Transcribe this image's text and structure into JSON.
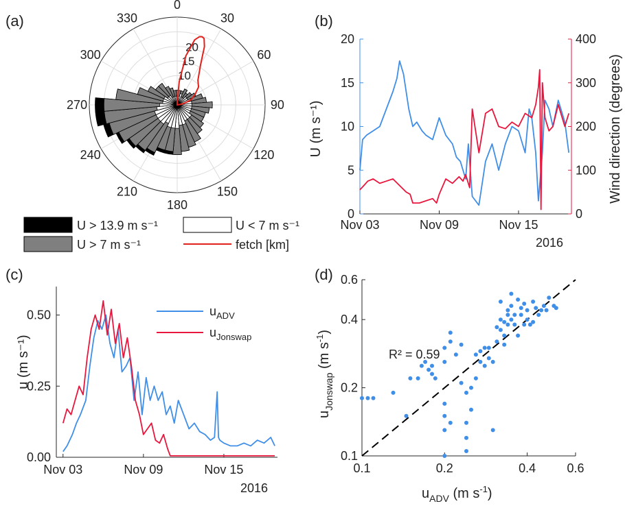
{
  "colors": {
    "blue": "#3f8ee8",
    "red": "#e8163c",
    "fetch_red": "#e0201a",
    "black": "#000000",
    "gray": "#7f7f7f",
    "white": "#ffffff",
    "axis": "#262626"
  },
  "panel_labels": [
    "(a)",
    "(b)",
    "(c)",
    "(d)"
  ],
  "chart_data": [
    {
      "panel": "(a)",
      "type": "polar-bar",
      "angle_ticks": [
        "0",
        "30",
        "60",
        "90",
        "120",
        "150",
        "180",
        "210",
        "240",
        "270",
        "300",
        "330"
      ],
      "radial_ticks": [
        "10",
        "15",
        "20"
      ],
      "legend": {
        "black": "U > 13.9 m s⁻¹",
        "white": "U < 7 m s⁻¹",
        "gray": "U > 7 m s⁻¹",
        "fetch": "fetch [km]"
      },
      "bins_deg": [
        0,
        10,
        20,
        30,
        40,
        50,
        60,
        70,
        80,
        90,
        100,
        110,
        120,
        130,
        140,
        150,
        160,
        170,
        180,
        190,
        200,
        210,
        220,
        230,
        240,
        250,
        260,
        270,
        280,
        290,
        300,
        310,
        320,
        330,
        340,
        350
      ],
      "r_low": [
        3,
        3,
        4,
        3,
        3,
        4,
        4,
        5,
        5,
        5,
        5,
        5,
        5,
        6,
        6,
        6,
        7,
        7,
        8,
        8,
        8,
        7,
        8,
        8,
        8,
        8,
        7,
        6,
        5,
        5,
        5,
        4,
        4,
        3,
        3,
        3
      ],
      "r_mid": [
        5,
        5,
        5,
        6,
        5,
        6,
        7,
        9,
        10,
        12,
        11,
        10,
        10,
        11,
        12,
        14,
        15,
        16,
        17,
        16,
        16,
        18,
        19,
        20,
        22,
        24,
        25,
        25,
        21,
        14,
        11,
        9,
        9,
        7,
        6,
        5
      ],
      "r_high": [
        0,
        0,
        0,
        0,
        0,
        0,
        0,
        0,
        0,
        0,
        0,
        0,
        0,
        0,
        0,
        0,
        0,
        0,
        0,
        1,
        1,
        1,
        1,
        1,
        1,
        2,
        3,
        3,
        0,
        0,
        0,
        0,
        0,
        0,
        0,
        0
      ],
      "fetch_km": {
        "angle": [
          0,
          5,
          10,
          15,
          18,
          20,
          22,
          25,
          30,
          40,
          50,
          60,
          70,
          75,
          80,
          90
        ],
        "r": [
          1,
          8,
          17,
          23,
          24.5,
          24.8,
          24.5,
          22,
          16,
          11,
          9.5,
          7,
          5,
          3,
          1.5,
          0
        ]
      }
    },
    {
      "panel": "(b)",
      "type": "line",
      "x_ticks": [
        "Nov 03",
        "Nov 09",
        "Nov 15"
      ],
      "x_year": "2016",
      "ylabel_left": "U (m s⁻¹)",
      "ylabel_right": "Wind direction (degrees)",
      "ylim_left": [
        0,
        20
      ],
      "ylim_right": [
        0,
        400
      ],
      "yticks_left": [
        "0",
        "5",
        "10",
        "15",
        "20"
      ],
      "yticks_right": [
        "0",
        "100",
        "200",
        "300",
        "400"
      ],
      "xlim_days": [
        3,
        19
      ],
      "series": [
        {
          "axis": "left",
          "color": "blue",
          "x": [
            3.0,
            3.2,
            3.5,
            4.0,
            4.5,
            5.0,
            5.5,
            5.8,
            6.0,
            6.3,
            6.7,
            7.0,
            7.3,
            7.7,
            8.0,
            8.5,
            9.0,
            9.5,
            10.0,
            10.3,
            10.6,
            11.0,
            11.2,
            11.5,
            12.0,
            12.5,
            13.0,
            13.5,
            14.0,
            14.5,
            15.0,
            15.5,
            15.8,
            16.0,
            16.3,
            16.5,
            16.8,
            17.0,
            17.3,
            17.6,
            18.0,
            18.5,
            18.8
          ],
          "y": [
            5,
            8.5,
            9,
            9.5,
            10,
            12,
            14,
            15.5,
            17.5,
            16,
            12,
            10,
            10.5,
            9.5,
            9,
            8.5,
            11,
            9,
            8,
            6.5,
            6,
            4,
            8,
            2,
            1,
            6,
            8,
            5,
            8,
            10,
            9.5,
            7,
            12,
            11,
            7,
            1.5,
            7,
            13,
            12,
            10,
            13,
            10.5,
            7
          ]
        },
        {
          "axis": "right",
          "color": "red",
          "x": [
            3.0,
            3.3,
            3.6,
            4.0,
            4.5,
            5.0,
            5.5,
            6.0,
            6.5,
            6.8,
            7.0,
            7.5,
            8.0,
            8.5,
            8.8,
            9.0,
            9.5,
            10.0,
            10.5,
            10.8,
            11.0,
            11.1,
            11.3,
            11.5,
            12.0,
            12.5,
            13.0,
            13.5,
            14.0,
            14.5,
            15.0,
            15.5,
            16.0,
            16.3,
            16.5,
            16.6,
            16.7,
            16.8,
            17.0,
            17.3,
            17.6,
            18.0,
            18.5,
            18.8
          ],
          "y": [
            55,
            65,
            75,
            80,
            70,
            75,
            80,
            65,
            50,
            45,
            25,
            25,
            30,
            35,
            25,
            45,
            80,
            70,
            85,
            75,
            90,
            80,
            60,
            240,
            140,
            230,
            240,
            200,
            195,
            210,
            200,
            230,
            220,
            250,
            290,
            330,
            10,
            300,
            220,
            190,
            200,
            250,
            200,
            230
          ]
        }
      ]
    },
    {
      "panel": "(c)",
      "type": "line",
      "x_ticks": [
        "Nov 03",
        "Nov 09",
        "Nov 15"
      ],
      "x_year": "2016",
      "ylabel": "u (m s⁻¹)",
      "ylim": [
        0,
        0.6
      ],
      "yticks": [
        "0.00",
        "0.25",
        "0.50"
      ],
      "xlim_days": [
        2.5,
        19
      ],
      "legend": [
        "u_ADV",
        "u_Jonswap"
      ],
      "series": [
        {
          "name": "u_ADV",
          "color": "blue",
          "x": [
            3.0,
            3.3,
            3.7,
            4.0,
            4.3,
            4.7,
            5.0,
            5.3,
            5.6,
            5.9,
            6.2,
            6.5,
            6.8,
            7.1,
            7.4,
            7.7,
            8.0,
            8.3,
            8.6,
            8.9,
            9.2,
            9.5,
            9.8,
            10.1,
            10.4,
            10.7,
            11.0,
            11.3,
            11.6,
            12.0,
            12.4,
            12.8,
            13.2,
            13.6,
            14.0,
            14.3,
            14.5,
            14.6,
            14.7,
            15.0,
            15.5,
            16.0,
            16.5,
            17.0,
            17.5,
            18.0,
            18.5,
            18.8
          ],
          "y": [
            0.02,
            0.04,
            0.08,
            0.12,
            0.15,
            0.2,
            0.32,
            0.42,
            0.48,
            0.45,
            0.5,
            0.4,
            0.35,
            0.45,
            0.3,
            0.32,
            0.35,
            0.2,
            0.3,
            0.15,
            0.28,
            0.2,
            0.25,
            0.2,
            0.23,
            0.15,
            0.18,
            0.12,
            0.2,
            0.15,
            0.1,
            0.12,
            0.09,
            0.08,
            0.06,
            0.07,
            0.23,
            0.07,
            0.06,
            0.05,
            0.04,
            0.04,
            0.05,
            0.04,
            0.06,
            0.05,
            0.07,
            0.04
          ]
        },
        {
          "name": "u_Jonswap",
          "color": "red",
          "x": [
            3.0,
            3.3,
            3.6,
            3.9,
            4.2,
            4.5,
            4.8,
            5.1,
            5.4,
            5.7,
            6.0,
            6.3,
            6.6,
            6.9,
            7.2,
            7.5,
            7.8,
            8.1,
            8.4,
            8.7,
            9.0,
            9.3,
            9.6,
            9.9,
            10.2,
            10.5,
            10.8,
            11.0,
            11.5,
            12.0,
            13.0,
            14.0,
            15.0,
            16.0,
            17.0,
            18.0,
            18.8
          ],
          "y": [
            0.12,
            0.17,
            0.15,
            0.2,
            0.25,
            0.22,
            0.35,
            0.45,
            0.5,
            0.45,
            0.55,
            0.43,
            0.52,
            0.4,
            0.47,
            0.35,
            0.42,
            0.32,
            0.2,
            0.15,
            0.08,
            0.1,
            0.12,
            0.06,
            0.05,
            0.08,
            0.03,
            0.005,
            0.005,
            0.005,
            0.005,
            0.005,
            0.005,
            0.005,
            0.005,
            0.005,
            0.005
          ]
        }
      ]
    },
    {
      "panel": "(d)",
      "type": "scatter",
      "scale": "log-log",
      "xlabel": "u_ADV (m s⁻¹)",
      "ylabel": "u_Jonswap (m s⁻¹)",
      "xlim": [
        0.1,
        0.6
      ],
      "ylim": [
        0.1,
        0.6
      ],
      "xticks": [
        "0.1",
        "0.2",
        "0.4",
        "0.6"
      ],
      "yticks": [
        "0.1",
        "0.2",
        "0.4",
        "0.6"
      ],
      "annotation": "R² = 0.59",
      "reference_line": "1:1 dashed",
      "points": [
        [
          0.1,
          0.18
        ],
        [
          0.105,
          0.18
        ],
        [
          0.11,
          0.18
        ],
        [
          0.13,
          0.19
        ],
        [
          0.145,
          0.15
        ],
        [
          0.15,
          0.22
        ],
        [
          0.16,
          0.22
        ],
        [
          0.165,
          0.25
        ],
        [
          0.17,
          0.26
        ],
        [
          0.175,
          0.24
        ],
        [
          0.18,
          0.25
        ],
        [
          0.18,
          0.23
        ],
        [
          0.185,
          0.22
        ],
        [
          0.2,
          0.26
        ],
        [
          0.2,
          0.3
        ],
        [
          0.2,
          0.17
        ],
        [
          0.2,
          0.15
        ],
        [
          0.2,
          0.13
        ],
        [
          0.2,
          0.1
        ],
        [
          0.21,
          0.14
        ],
        [
          0.21,
          0.32
        ],
        [
          0.21,
          0.35
        ],
        [
          0.22,
          0.28
        ],
        [
          0.23,
          0.21
        ],
        [
          0.24,
          0.14
        ],
        [
          0.24,
          0.19
        ],
        [
          0.24,
          0.12
        ],
        [
          0.24,
          0.105
        ],
        [
          0.25,
          0.2
        ],
        [
          0.25,
          0.16
        ],
        [
          0.26,
          0.22
        ],
        [
          0.26,
          0.28
        ],
        [
          0.27,
          0.26
        ],
        [
          0.28,
          0.25
        ],
        [
          0.28,
          0.3
        ],
        [
          0.29,
          0.3
        ],
        [
          0.3,
          0.26
        ],
        [
          0.3,
          0.13
        ],
        [
          0.31,
          0.32
        ],
        [
          0.32,
          0.36
        ],
        [
          0.32,
          0.4
        ],
        [
          0.32,
          0.48
        ],
        [
          0.33,
          0.34
        ],
        [
          0.33,
          0.39
        ],
        [
          0.34,
          0.42
        ],
        [
          0.34,
          0.44
        ],
        [
          0.34,
          0.38
        ],
        [
          0.35,
          0.52
        ],
        [
          0.35,
          0.4
        ],
        [
          0.35,
          0.46
        ],
        [
          0.36,
          0.38
        ],
        [
          0.36,
          0.42
        ],
        [
          0.37,
          0.49
        ],
        [
          0.37,
          0.34
        ],
        [
          0.38,
          0.45
        ],
        [
          0.38,
          0.42
        ],
        [
          0.39,
          0.47
        ],
        [
          0.39,
          0.38
        ],
        [
          0.4,
          0.4
        ],
        [
          0.4,
          0.44
        ],
        [
          0.41,
          0.38
        ],
        [
          0.42,
          0.48
        ],
        [
          0.42,
          0.39
        ],
        [
          0.43,
          0.45
        ],
        [
          0.44,
          0.42
        ],
        [
          0.45,
          0.44
        ],
        [
          0.46,
          0.46
        ],
        [
          0.47,
          0.44
        ],
        [
          0.48,
          0.5
        ],
        [
          0.5,
          0.46
        ],
        [
          0.51,
          0.45
        ],
        [
          0.31,
          0.37
        ],
        [
          0.27,
          0.29
        ],
        [
          0.23,
          0.31
        ],
        [
          0.29,
          0.27
        ],
        [
          0.33,
          0.31
        ]
      ]
    }
  ]
}
